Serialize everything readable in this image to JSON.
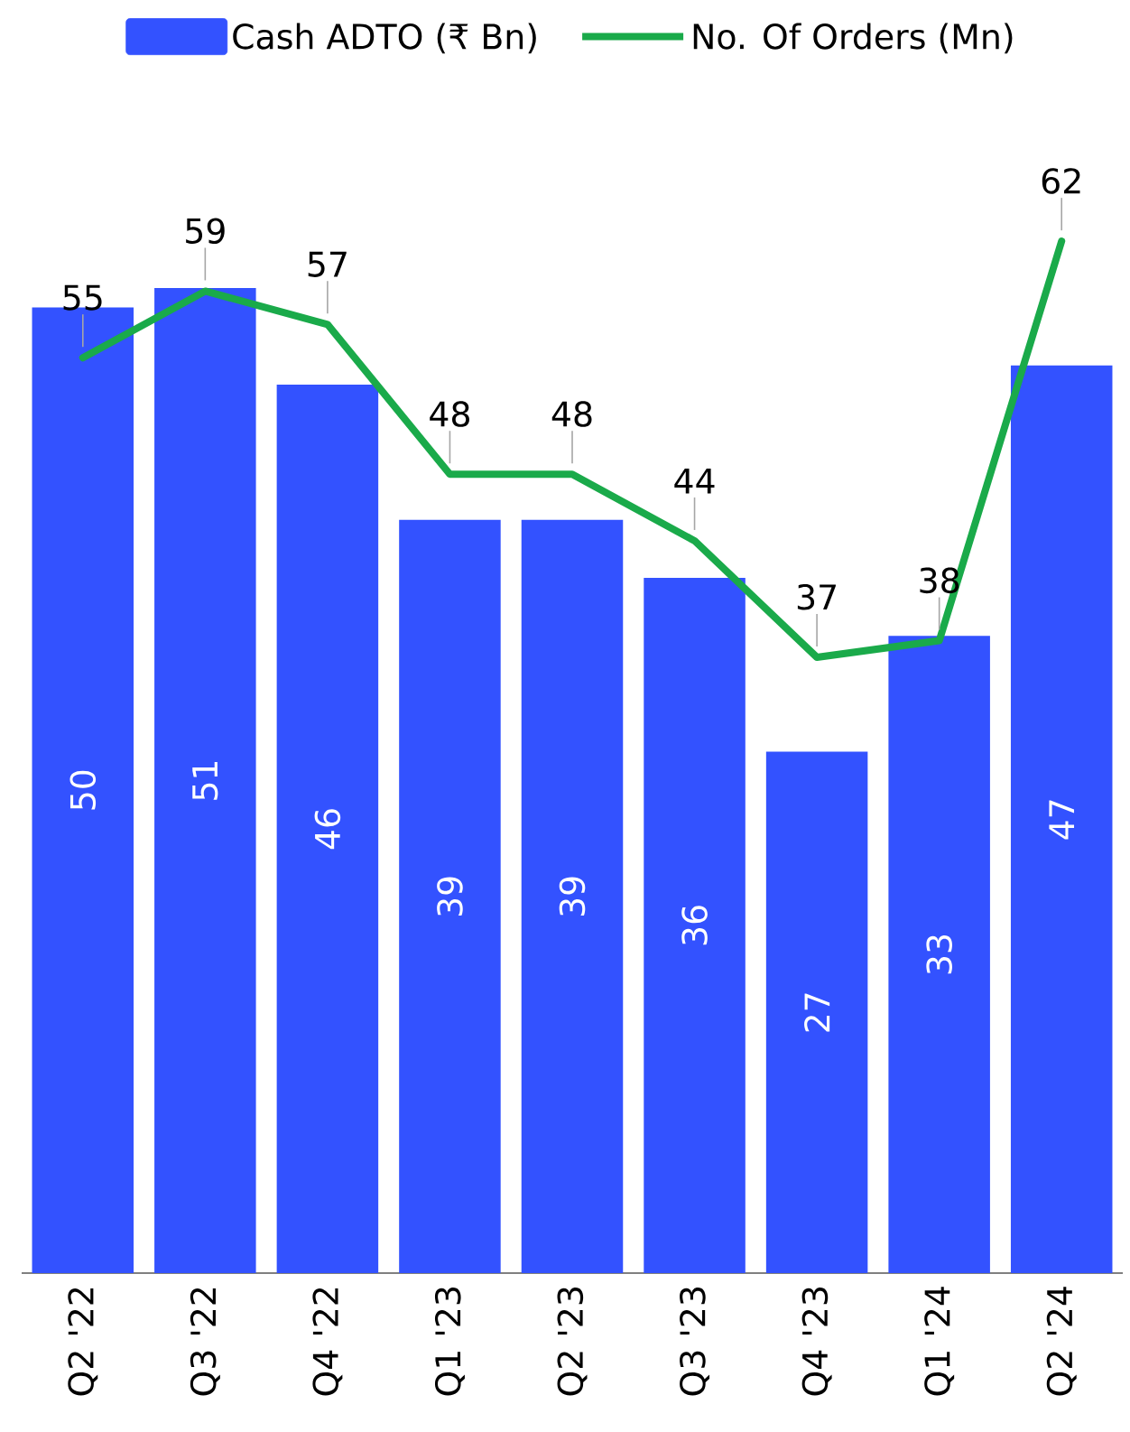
{
  "chart_data": {
    "type": "bar",
    "categories": [
      "Q2 '22",
      "Q3 '22",
      "Q4 '22",
      "Q1 '23",
      "Q2 '23",
      "Q3 '23",
      "Q4 '23",
      "Q1 '24",
      "Q2 '24"
    ],
    "series": [
      {
        "name": "Cash ADTO (₹ Bn)",
        "color": "#3352ff",
        "values": [
          50,
          51,
          46,
          39,
          39,
          36,
          27,
          33,
          47
        ]
      },
      {
        "name": "No. Of Orders (Mn)",
        "type": "line",
        "axis": "y2",
        "line_style": "solid",
        "color": "#1aaa4a",
        "values": [
          55,
          59,
          57,
          48,
          48,
          44,
          37,
          38,
          62
        ]
      }
    ],
    "data_labels": true,
    "legend": "top",
    "tick_labels": "x"
  }
}
